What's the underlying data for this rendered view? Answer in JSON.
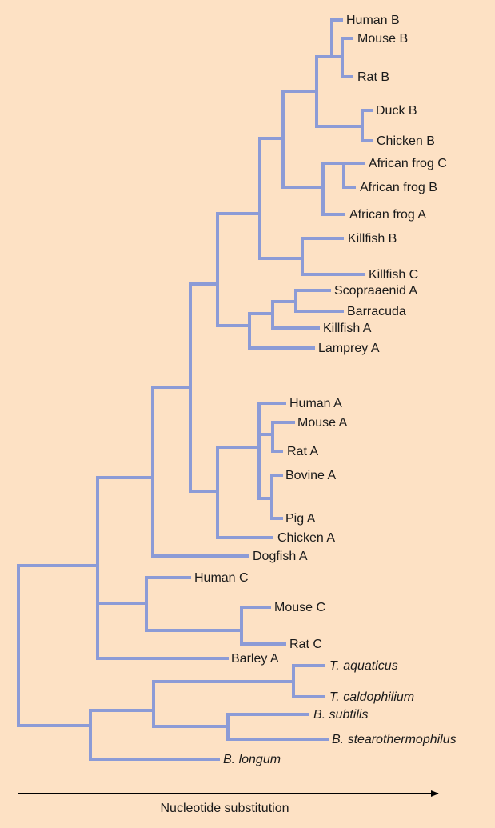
{
  "colors": {
    "background": "#fde1c4",
    "branch": "#8c9bd6",
    "text": "#1a1a1a"
  },
  "leaves": [
    {
      "label": "Human B",
      "italic": false
    },
    {
      "label": "Mouse B",
      "italic": false
    },
    {
      "label": "Rat B",
      "italic": false
    },
    {
      "label": "Duck B",
      "italic": false
    },
    {
      "label": "Chicken B",
      "italic": false
    },
    {
      "label": "African frog C",
      "italic": false
    },
    {
      "label": "African frog B",
      "italic": false
    },
    {
      "label": "African frog A",
      "italic": false
    },
    {
      "label": "Killfish B",
      "italic": false
    },
    {
      "label": "Killfish C",
      "italic": false
    },
    {
      "label": "Scopraaenid A",
      "italic": false
    },
    {
      "label": "Barracuda",
      "italic": false
    },
    {
      "label": "Killfish A",
      "italic": false
    },
    {
      "label": "Lamprey A",
      "italic": false
    },
    {
      "label": "Human A",
      "italic": false
    },
    {
      "label": "Mouse A",
      "italic": false
    },
    {
      "label": "Rat A",
      "italic": false
    },
    {
      "label": "Bovine A",
      "italic": false
    },
    {
      "label": "Pig A",
      "italic": false
    },
    {
      "label": "Chicken A",
      "italic": false
    },
    {
      "label": "Dogfish A",
      "italic": false
    },
    {
      "label": "Human C",
      "italic": false
    },
    {
      "label": "Mouse C",
      "italic": false
    },
    {
      "label": "Rat C",
      "italic": false
    },
    {
      "label": "Barley A",
      "italic": false
    },
    {
      "label": "T. aquaticus",
      "italic": true
    },
    {
      "label": "T. caldophilium",
      "italic": true
    },
    {
      "label": "B. subtilis",
      "italic": true
    },
    {
      "label": "B. stearothermophilus",
      "italic": true
    },
    {
      "label": "B. longum",
      "italic": true
    }
  ],
  "axis": {
    "label": "Nucleotide substitution",
    "direction": "arrow-right"
  }
}
